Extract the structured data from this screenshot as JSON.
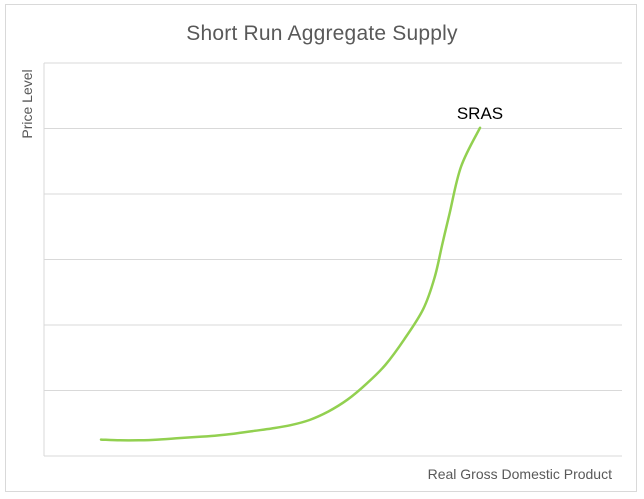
{
  "chart_data": {
    "type": "line",
    "title": "Short Run Aggregate Supply",
    "xlabel": "Real Gross Domestic Product",
    "ylabel": "Price Level",
    "ylim": [
      0,
      6
    ],
    "grid": true,
    "legend": "none",
    "series": [
      {
        "name": "SRAS",
        "color": "#92d050",
        "points": [
          [
            0.0,
            0.25
          ],
          [
            0.05,
            0.24
          ],
          [
            0.1,
            0.24
          ],
          [
            0.15,
            0.25
          ],
          [
            0.2,
            0.27
          ],
          [
            0.25,
            0.29
          ],
          [
            0.3,
            0.31
          ],
          [
            0.35,
            0.34
          ],
          [
            0.4,
            0.38
          ],
          [
            0.45,
            0.42
          ],
          [
            0.5,
            0.47
          ],
          [
            0.55,
            0.55
          ],
          [
            0.6,
            0.68
          ],
          [
            0.65,
            0.86
          ],
          [
            0.7,
            1.1
          ],
          [
            0.75,
            1.39
          ],
          [
            0.8,
            1.78
          ],
          [
            0.85,
            2.24
          ],
          [
            0.88,
            2.72
          ],
          [
            0.9,
            3.22
          ],
          [
            0.92,
            3.71
          ],
          [
            0.95,
            4.42
          ],
          [
            1.0,
            5.01
          ]
        ]
      }
    ],
    "annotation": "SRAS"
  }
}
